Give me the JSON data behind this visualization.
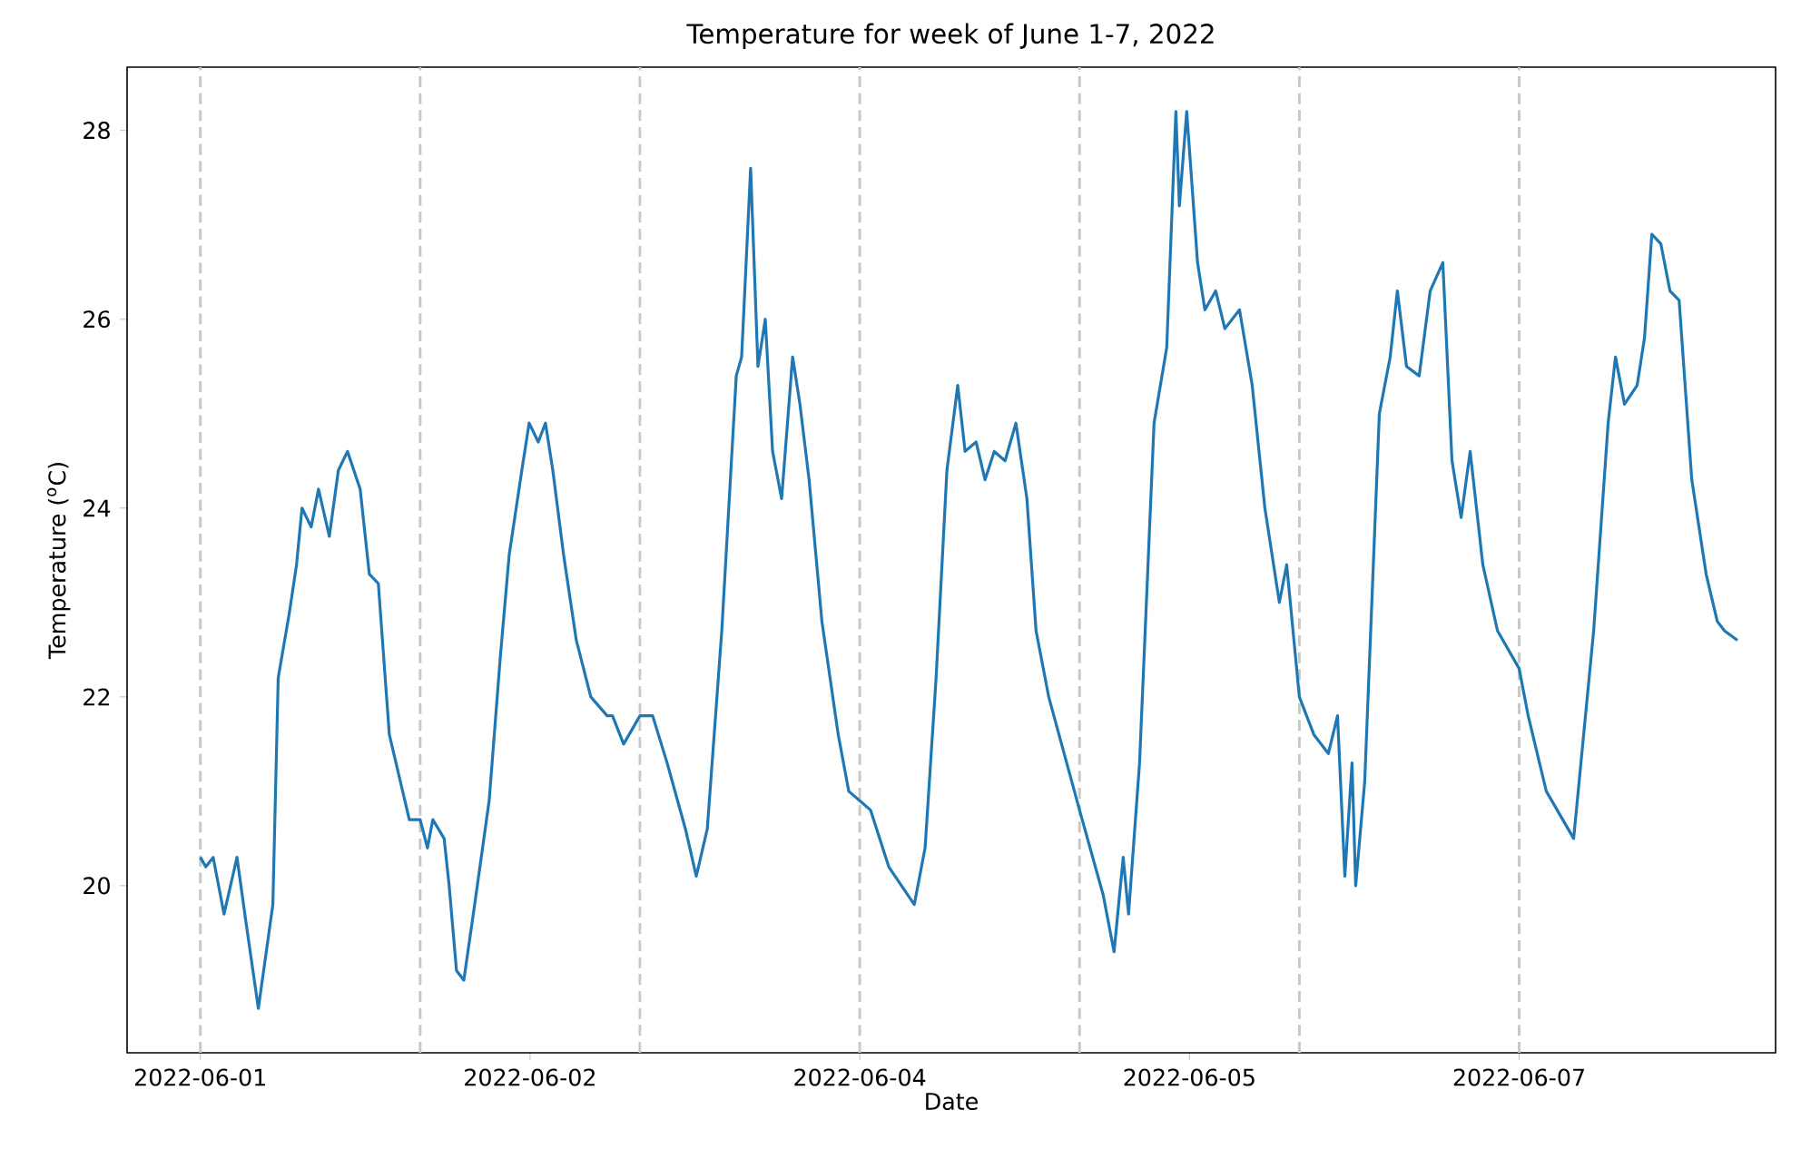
{
  "chart_data": {
    "type": "line",
    "title": "Temperature for week of June 1-7, 2022",
    "xlabel": "Date",
    "ylabel": "Temperature ($^{o}$C)",
    "xlim": [
      "2022-05-31T16:00",
      "2022-06-08T04:00"
    ],
    "xticks": [
      {
        "value": "2022-06-01T00:00",
        "label": "2022-06-01"
      },
      {
        "value": "2022-06-02T12:00",
        "label": "2022-06-02"
      },
      {
        "value": "2022-06-04T00:00",
        "label": "2022-06-04"
      },
      {
        "value": "2022-06-05T12:00",
        "label": "2022-06-05"
      },
      {
        "value": "2022-06-07T00:00",
        "label": "2022-06-07"
      }
    ],
    "ylim": [
      18.23,
      28.67
    ],
    "yticks": [
      20,
      22,
      24,
      26,
      28
    ],
    "grid": false,
    "line_style": "solid",
    "marker": "none",
    "ref_lines": [
      {
        "axis": "x",
        "value": "2022-06-01T00:00",
        "color": "#c8c8c8",
        "line_style": "dashed"
      },
      {
        "axis": "x",
        "value": "2022-06-02T00:00",
        "color": "#c8c8c8",
        "line_style": "dashed"
      },
      {
        "axis": "x",
        "value": "2022-06-03T00:00",
        "color": "#c8c8c8",
        "line_style": "dashed"
      },
      {
        "axis": "x",
        "value": "2022-06-04T00:00",
        "color": "#c8c8c8",
        "line_style": "dashed"
      },
      {
        "axis": "x",
        "value": "2022-06-05T00:00",
        "color": "#c8c8c8",
        "line_style": "dashed"
      },
      {
        "axis": "x",
        "value": "2022-06-06T00:00",
        "color": "#c8c8c8",
        "line_style": "dashed"
      },
      {
        "axis": "x",
        "value": "2022-06-07T00:00",
        "color": "#c8c8c8",
        "line_style": "dashed"
      }
    ],
    "series": [
      {
        "color": "#1f77b4",
        "x": [
          "2022-06-01T00:00",
          "2022-06-01T00:36",
          "2022-06-01T01:24",
          "2022-06-01T02:35",
          "2022-06-01T04:00",
          "2022-06-01T05:00",
          "2022-06-01T06:20",
          "2022-06-01T07:55",
          "2022-06-01T08:30",
          "2022-06-01T09:44",
          "2022-06-01T10:30",
          "2022-06-01T11:06",
          "2022-06-01T12:06",
          "2022-06-01T12:54",
          "2022-06-01T14:05",
          "2022-06-01T15:04",
          "2022-06-01T16:04",
          "2022-06-01T17:27",
          "2022-06-01T18:27",
          "2022-06-01T19:26",
          "2022-06-01T20:38",
          "2022-06-01T22:49",
          "2022-06-02T00:00",
          "2022-06-02T00:48",
          "2022-06-02T01:23",
          "2022-06-02T02:37",
          "2022-06-02T03:10",
          "2022-06-02T03:58",
          "2022-06-02T04:46",
          "2022-06-02T05:57",
          "2022-06-02T07:32",
          "2022-06-02T08:44",
          "2022-06-02T09:43",
          "2022-06-02T11:06",
          "2022-06-02T11:54",
          "2022-06-02T12:54",
          "2022-06-02T13:41",
          "2022-06-02T14:29",
          "2022-06-02T15:40",
          "2022-06-02T17:03",
          "2022-06-02T18:38",
          "2022-06-02T20:25",
          "2022-06-02T21:00",
          "2022-06-02T22:13",
          "2022-06-03T00:00",
          "2022-06-03T01:23",
          "2022-06-03T02:58",
          "2022-06-03T04:58",
          "2022-06-03T06:09",
          "2022-06-03T07:21",
          "2022-06-03T08:56",
          "2022-06-03T10:31",
          "2022-06-03T11:06",
          "2022-06-03T12:05",
          "2022-06-03T12:53",
          "2022-06-03T13:41",
          "2022-06-03T14:29",
          "2022-06-03T15:28",
          "2022-06-03T16:40",
          "2022-06-03T17:28",
          "2022-06-03T18:28",
          "2022-06-03T19:52",
          "2022-06-03T21:39",
          "2022-06-03T22:48",
          "2022-06-04T00:00",
          "2022-06-04T01:11",
          "2022-06-04T03:10",
          "2022-06-04T05:57",
          "2022-06-04T07:08",
          "2022-06-04T08:20",
          "2022-06-04T09:31",
          "2022-06-04T10:42",
          "2022-06-04T11:30",
          "2022-06-04T12:42",
          "2022-06-04T13:41",
          "2022-06-04T14:41",
          "2022-06-04T15:52",
          "2022-06-04T17:03",
          "2022-06-04T18:15",
          "2022-06-04T19:15",
          "2022-06-04T20:38",
          "2022-06-05T00:00",
          "2022-06-05T02:35",
          "2022-06-05T03:46",
          "2022-06-05T04:46",
          "2022-06-05T05:21",
          "2022-06-05T06:33",
          "2022-06-05T08:08",
          "2022-06-05T09:31",
          "2022-06-05T10:31",
          "2022-06-05T10:54",
          "2022-06-05T11:42",
          "2022-06-05T12:53",
          "2022-06-05T13:41",
          "2022-06-05T14:52",
          "2022-06-05T15:52",
          "2022-06-05T17:28",
          "2022-06-05T18:51",
          "2022-06-05T20:14",
          "2022-06-05T21:49",
          "2022-06-05T22:37",
          "2022-06-06T00:00",
          "2022-06-06T01:35",
          "2022-06-06T03:10",
          "2022-06-06T04:10",
          "2022-06-06T04:58",
          "2022-06-06T05:45",
          "2022-06-06T06:09",
          "2022-06-06T07:08",
          "2022-06-06T08:44",
          "2022-06-06T09:55",
          "2022-06-06T10:42",
          "2022-06-06T11:42",
          "2022-06-06T13:05",
          "2022-06-06T14:17",
          "2022-06-06T15:40",
          "2022-06-06T16:40",
          "2022-06-06T17:40",
          "2022-06-06T18:39",
          "2022-06-06T20:02",
          "2022-06-06T21:38",
          "2022-06-07T00:00",
          "2022-06-07T00:59",
          "2022-06-07T02:58",
          "2022-06-07T05:57",
          "2022-06-07T08:08",
          "2022-06-07T09:43",
          "2022-06-07T10:31",
          "2022-06-07T11:30",
          "2022-06-07T12:53",
          "2022-06-07T13:41",
          "2022-06-07T14:29",
          "2022-06-07T15:28",
          "2022-06-07T16:28",
          "2022-06-07T17:28",
          "2022-06-07T18:51",
          "2022-06-07T20:25",
          "2022-06-07T21:38",
          "2022-06-07T22:25",
          "2022-06-07T23:50"
        ],
        "values": [
          20.3,
          20.2,
          20.3,
          19.7,
          20.3,
          19.6,
          18.7,
          19.8,
          22.2,
          22.9,
          23.4,
          24.0,
          23.8,
          24.2,
          23.7,
          24.4,
          24.6,
          24.2,
          23.3,
          23.2,
          21.6,
          20.7,
          20.7,
          20.4,
          20.7,
          20.5,
          20.0,
          19.1,
          19.0,
          19.8,
          20.9,
          22.4,
          23.5,
          24.4,
          24.9,
          24.7,
          24.9,
          24.4,
          23.5,
          22.6,
          22.0,
          21.8,
          21.8,
          21.5,
          21.8,
          21.8,
          21.3,
          20.6,
          20.1,
          20.6,
          22.7,
          25.4,
          25.6,
          27.6,
          25.5,
          26.0,
          24.6,
          24.1,
          25.6,
          25.1,
          24.3,
          22.8,
          21.6,
          21.0,
          20.9,
          20.8,
          20.2,
          19.8,
          20.4,
          22.2,
          24.4,
          25.3,
          24.6,
          24.7,
          24.3,
          24.6,
          24.5,
          24.9,
          24.1,
          22.7,
          22.0,
          20.8,
          19.9,
          19.3,
          20.3,
          19.7,
          21.3,
          24.9,
          25.7,
          28.2,
          27.2,
          28.2,
          26.6,
          26.1,
          26.3,
          25.9,
          26.1,
          25.3,
          24.0,
          23.0,
          23.4,
          22.0,
          21.6,
          21.4,
          21.8,
          20.1,
          21.3,
          20.0,
          21.1,
          25.0,
          25.6,
          26.3,
          25.5,
          25.4,
          26.3,
          26.6,
          24.5,
          23.9,
          24.6,
          23.4,
          22.7,
          22.3,
          21.8,
          21.0,
          20.5,
          22.7,
          24.9,
          25.6,
          25.1,
          25.3,
          25.8,
          26.9,
          26.8,
          26.3,
          26.2,
          24.3,
          23.3,
          22.8,
          22.7,
          22.6
        ]
      }
    ]
  }
}
